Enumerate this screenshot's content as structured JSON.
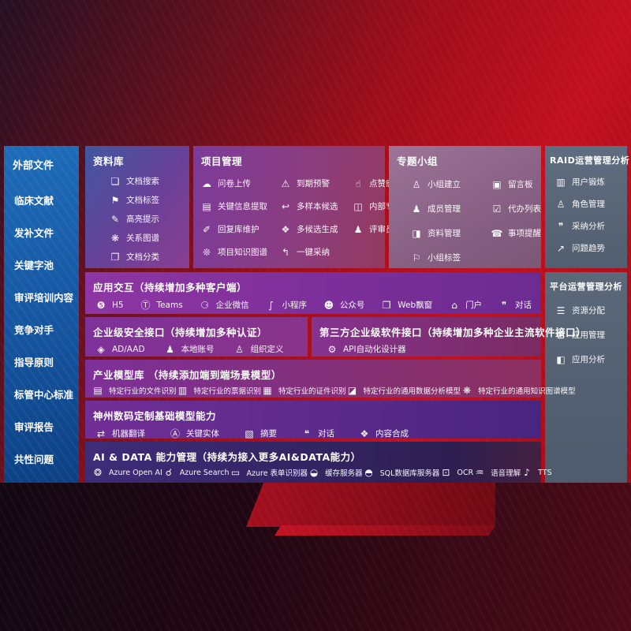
{
  "colors": {
    "background_red": "#c11020",
    "sidebar_blue": "#15549f",
    "panel_purple": "#7c3b9b",
    "panel_mauve": "#8a6386",
    "panel_slate": "#5a6879",
    "panel_indigo": "#3e2c78",
    "text": "#ffffff"
  },
  "sidebar": {
    "title": "外部文件",
    "items": [
      "临床文献",
      "发补文件",
      "关键字池",
      "审评培训内容",
      "竞争对手",
      "指导原则",
      "标管中心标准",
      "审评报告",
      "共性问题"
    ]
  },
  "repository": {
    "title": "资料库",
    "items": [
      {
        "label": "文档搜索",
        "icon": "document-search-icon",
        "glyph": "❏"
      },
      {
        "label": "文档标签",
        "icon": "tag-icon",
        "glyph": "⚑"
      },
      {
        "label": "高亮提示",
        "icon": "highlight-pen-icon",
        "glyph": "✎"
      },
      {
        "label": "关系图谱",
        "icon": "relation-graph-icon",
        "glyph": "❋"
      },
      {
        "label": "文档分类",
        "icon": "document-category-icon",
        "glyph": "❐"
      }
    ]
  },
  "project": {
    "title": "项目管理",
    "items": [
      {
        "label": "问卷上传",
        "icon": "cloud-upload-icon",
        "glyph": "☁"
      },
      {
        "label": "到期预警",
        "icon": "alarm-icon",
        "glyph": "⚠"
      },
      {
        "label": "点赞感谢",
        "icon": "thumbs-up-icon",
        "glyph": "☝"
      },
      {
        "label": "关键信息提取",
        "icon": "key-info-extract-icon",
        "glyph": "▤"
      },
      {
        "label": "多样本候选",
        "icon": "reply-arrow-icon",
        "glyph": "↩"
      },
      {
        "label": "内部专家排名",
        "icon": "podium-icon",
        "glyph": "◫"
      },
      {
        "label": "回复库维护",
        "icon": "pen-icon",
        "glyph": "✐"
      },
      {
        "label": "多候选生成",
        "icon": "puzzle-icon",
        "glyph": "❖"
      },
      {
        "label": "评审员画像",
        "icon": "person-icon",
        "glyph": "♟"
      },
      {
        "label": "项目知识图谱",
        "icon": "knowledge-graph-icon",
        "glyph": "❊"
      },
      {
        "label": "一键采纳",
        "icon": "adopt-arrow-icon",
        "glyph": "↰"
      }
    ]
  },
  "topic": {
    "title": "专题小组",
    "items": [
      {
        "label": "小组建立",
        "icon": "people-group-icon",
        "glyph": "♙"
      },
      {
        "label": "留言板",
        "icon": "bbs-board-icon",
        "glyph": "▣"
      },
      {
        "label": "成员管理",
        "icon": "member-add-icon",
        "glyph": "♟"
      },
      {
        "label": "代办列表",
        "icon": "clipboard-icon",
        "glyph": "☑"
      },
      {
        "label": "资料管理",
        "icon": "photo-album-icon",
        "glyph": "◨"
      },
      {
        "label": "事项提醒",
        "icon": "bell-icon",
        "glyph": "☎"
      },
      {
        "label": "小组标签",
        "icon": "group-tag-icon",
        "glyph": "⚐"
      }
    ]
  },
  "raid": {
    "title": "RAID运营管理分析",
    "items": [
      {
        "label": "用户锻炼",
        "icon": "id-card-icon",
        "glyph": "▥"
      },
      {
        "label": "角色管理",
        "icon": "people-icon",
        "glyph": "♙"
      },
      {
        "label": "采纳分析",
        "icon": "qa-chat-icon",
        "glyph": "❞"
      },
      {
        "label": "问题趋势",
        "icon": "trend-chart-icon",
        "glyph": "↗"
      }
    ]
  },
  "platform": {
    "title": "平台运营管理分析",
    "items": [
      {
        "label": "资源分配",
        "icon": "list-icon",
        "glyph": "☰"
      },
      {
        "label": "应用管理",
        "icon": "app-grid-icon",
        "glyph": "⊞"
      },
      {
        "label": "应用分析",
        "icon": "analysis-chart-icon",
        "glyph": "◧"
      }
    ]
  },
  "interaction": {
    "title": "应用交互（持续增加多种客户端）",
    "items": [
      {
        "label": "H5",
        "icon": "html5-icon",
        "glyph": "❺"
      },
      {
        "label": "Teams",
        "icon": "teams-icon",
        "glyph": "Ⓣ"
      },
      {
        "label": "企业微信",
        "icon": "wechat-work-icon",
        "glyph": "⚆"
      },
      {
        "label": "小程序",
        "icon": "miniprogram-icon",
        "glyph": "∫"
      },
      {
        "label": "公众号",
        "icon": "official-account-icon",
        "glyph": "☻"
      },
      {
        "label": "Web飘窗",
        "icon": "web-window-icon",
        "glyph": "❒"
      },
      {
        "label": "门户",
        "icon": "portal-icon",
        "glyph": "⌂"
      },
      {
        "label": "对话",
        "icon": "dialog-icon",
        "glyph": "❞"
      }
    ]
  },
  "security": {
    "title": "企业级安全接口（持续增加多种认证）",
    "items": [
      {
        "label": "AD/AAD",
        "icon": "ad-aad-icon",
        "glyph": "◈"
      },
      {
        "label": "本地账号",
        "icon": "local-account-icon",
        "glyph": "♟"
      },
      {
        "label": "组织定义",
        "icon": "org-define-icon",
        "glyph": "♙"
      }
    ]
  },
  "thirdparty": {
    "title": "第三方企业级软件接口（持续增加多种企业主流软件接口）",
    "items": [
      {
        "label": "API自动化设计器",
        "icon": "api-designer-gear-icon",
        "glyph": "⚙"
      }
    ]
  },
  "industry": {
    "title": "产业模型库 （持续添加端到端场景模型）",
    "items": [
      {
        "label": "特定行业的文件识别",
        "icon": "file-recognition-icon",
        "glyph": "▤"
      },
      {
        "label": "特定行业的票据识别",
        "icon": "receipt-recognition-icon",
        "glyph": "▥"
      },
      {
        "label": "特定行业的证件识别",
        "icon": "id-recognition-icon",
        "glyph": "▦"
      },
      {
        "label": "特定行业的通用数据分析模型",
        "icon": "data-analysis-model-icon",
        "glyph": "◪"
      },
      {
        "label": "特定行业的通用知识图谱模型",
        "icon": "knowledge-graph-model-icon",
        "glyph": "❋"
      }
    ]
  },
  "basemodel": {
    "title": "神州数码定制基础模型能力",
    "items": [
      {
        "label": "机器翻译",
        "icon": "translate-icon",
        "glyph": "⇄"
      },
      {
        "label": "关键实体",
        "icon": "entity-shield-icon",
        "glyph": "Ⓐ"
      },
      {
        "label": "摘要",
        "icon": "summary-doc-icon",
        "glyph": "▧"
      },
      {
        "label": "对话",
        "icon": "chat-bubble-icon",
        "glyph": "❝"
      },
      {
        "label": "内容合成",
        "icon": "compose-puzzle-icon",
        "glyph": "❖"
      }
    ]
  },
  "aidata": {
    "title": "AI & DATA 能力管理（持续为接入更多AI&DATA能力）",
    "items": [
      {
        "label": "Azure Open AI",
        "icon": "openai-icon",
        "glyph": "❂"
      },
      {
        "label": "Azure Search",
        "icon": "azure-search-icon",
        "glyph": "☌"
      },
      {
        "label": "Azure 表单识别器",
        "icon": "form-recognizer-icon",
        "glyph": "▭"
      },
      {
        "label": "缓存服务器",
        "icon": "cache-server-icon",
        "glyph": "◒"
      },
      {
        "label": "SQL数据库服务器",
        "icon": "sql-database-icon",
        "glyph": "◓"
      },
      {
        "label": "OCR",
        "icon": "ocr-icon",
        "glyph": "⊡"
      },
      {
        "label": "语音理解",
        "icon": "speech-understanding-icon",
        "glyph": "♒"
      },
      {
        "label": "TTS",
        "icon": "tts-icon",
        "glyph": "♪"
      }
    ]
  }
}
